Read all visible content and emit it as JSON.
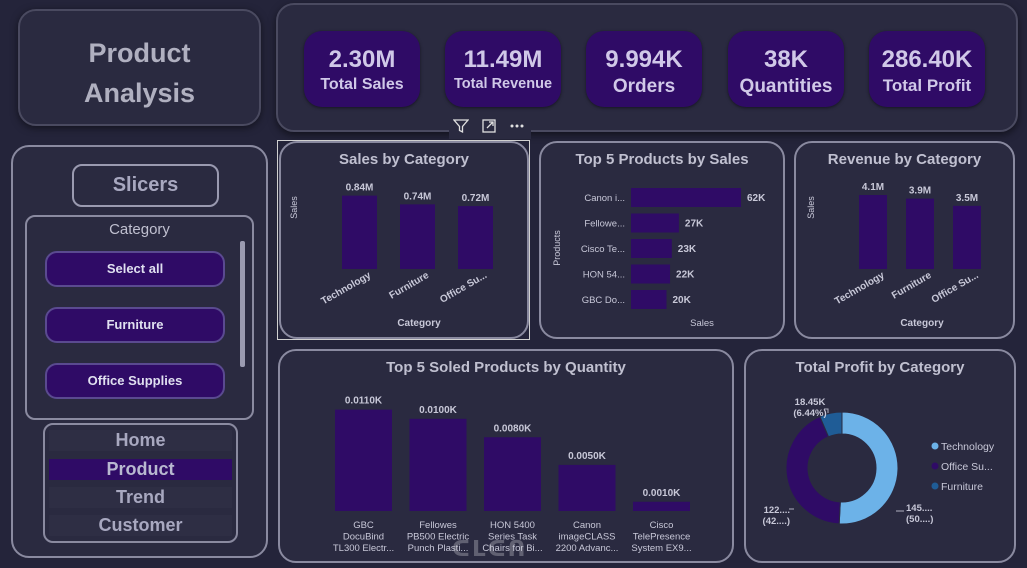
{
  "title": "Product\nAnalysis",
  "kpis": [
    {
      "value": "2.30M",
      "label": "Total Sales"
    },
    {
      "value": "11.49M",
      "label": "Total Revenue"
    },
    {
      "value": "9.994K",
      "label": "Orders"
    },
    {
      "value": "38K",
      "label": "Quantities"
    },
    {
      "value": "286.40K",
      "label": "Total Profit"
    }
  ],
  "slicers": {
    "title": "Slicers",
    "category_title": "Category",
    "options": [
      "Select all",
      "Furniture",
      "Office Supplies"
    ]
  },
  "nav": {
    "items": [
      "Home",
      "Product",
      "Trend",
      "Customer"
    ],
    "active": "Product"
  },
  "visual_header_icons": [
    "filter-icon",
    "focus-mode-icon",
    "more-options-icon"
  ],
  "watermark": "ᑕᒪᑕᑎ",
  "chart_data": [
    {
      "id": "sales-by-category",
      "type": "bar",
      "title": "Sales by Category",
      "xlabel": "Category",
      "ylabel": "Sales",
      "categories": [
        "Technology",
        "Furniture",
        "Office Su..."
      ],
      "values": [
        0.84,
        0.74,
        0.72
      ],
      "value_labels": [
        "0.84M",
        "0.74M",
        "0.72M"
      ],
      "ylim": [
        0,
        0.95
      ],
      "color": "#2f0b66"
    },
    {
      "id": "top5-products-by-sales",
      "type": "bar",
      "orientation": "horizontal",
      "title": "Top 5 Products by Sales",
      "xlabel": "Sales",
      "ylabel": "Products",
      "categories": [
        "Canon i...",
        "Fellowe...",
        "Cisco Te...",
        "HON 54...",
        "GBC Do..."
      ],
      "values": [
        62,
        27,
        23,
        22,
        20
      ],
      "value_labels": [
        "62K",
        "27K",
        "23K",
        "22K",
        "20K"
      ],
      "xlim": [
        0,
        62
      ],
      "color": "#2f0b66"
    },
    {
      "id": "revenue-by-category",
      "type": "bar",
      "title": "Revenue by Category",
      "xlabel": "Category",
      "ylabel": "Sales",
      "categories": [
        "Technology",
        "Furniture",
        "Office Su..."
      ],
      "values": [
        4.1,
        3.9,
        3.5
      ],
      "value_labels": [
        "4.1M",
        "3.9M",
        "3.5M"
      ],
      "ylim": [
        0,
        4.6
      ],
      "color": "#2f0b66"
    },
    {
      "id": "top5-sold-by-quantity",
      "type": "bar",
      "title": "Top 5 Soled Products by Quantity",
      "categories": [
        [
          "GBC",
          "DocuBind",
          "TL300 Electr..."
        ],
        [
          "Fellowes",
          "PB500 Electric",
          "Punch Plasti..."
        ],
        [
          "HON 5400",
          "Series Task",
          "Chairs for Bi..."
        ],
        [
          "Canon",
          "imageCLASS",
          "2200 Advanc..."
        ],
        [
          "Cisco",
          "TelePresence",
          "System EX9..."
        ]
      ],
      "values": [
        0.011,
        0.01,
        0.008,
        0.005,
        0.001
      ],
      "value_labels": [
        "0.0110K",
        "0.0100K",
        "0.0080K",
        "0.0050K",
        "0.0010K"
      ],
      "ylim": [
        0,
        0.0115
      ],
      "color": "#2f0b66"
    },
    {
      "id": "total-profit-by-category",
      "type": "pie",
      "donut": true,
      "title": "Total Profit by Category",
      "labels": [
        "Technology",
        "Office Su...",
        "Furniture"
      ],
      "values": [
        145,
        122,
        18.45
      ],
      "colors": [
        "#6cb2e8",
        "#2f0b66",
        "#1f5c96"
      ],
      "data_labels": [
        [
          "145....",
          "(50....)"
        ],
        [
          "122....",
          "(42....)"
        ],
        [
          "18.45K",
          "(6.44%)"
        ]
      ]
    }
  ]
}
